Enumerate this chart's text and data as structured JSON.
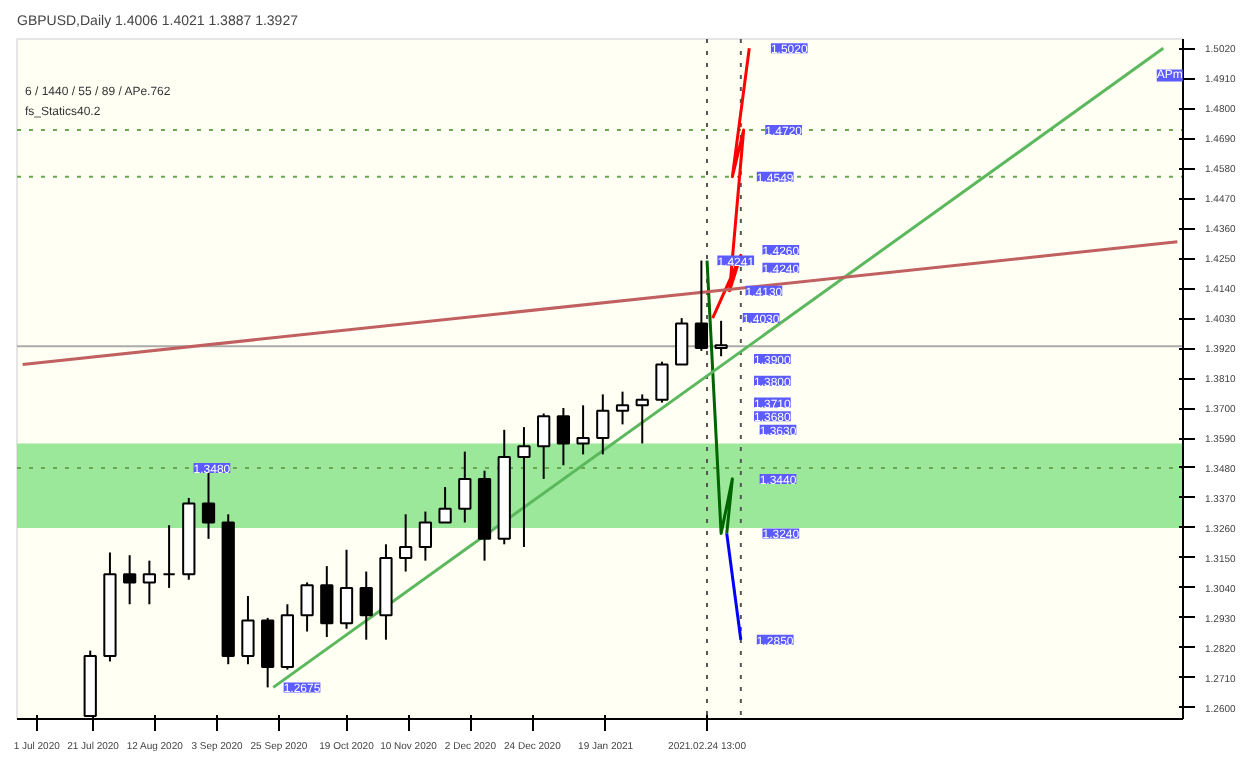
{
  "chart_data": {
    "type": "candlestick",
    "title": "GBPUSD,Daily  1.4006 1.4021 1.3887 1.3927",
    "x": [
      "2020-07-20",
      "2020-07-27",
      "2020-08-03",
      "2020-08-10",
      "2020-08-17",
      "2020-08-24",
      "2020-08-31",
      "2020-09-07",
      "2020-09-14",
      "2020-09-21",
      "2020-09-28",
      "2020-10-05",
      "2020-10-12",
      "2020-10-19",
      "2020-10-26",
      "2020-11-02",
      "2020-11-09",
      "2020-11-16",
      "2020-11-23",
      "2020-11-30",
      "2020-12-07",
      "2020-12-14",
      "2020-12-21",
      "2020-12-28",
      "2021-01-04",
      "2021-01-11",
      "2021-01-18",
      "2021-01-25",
      "2021-02-01",
      "2021-02-08",
      "2021-02-15",
      "2021-02-22",
      "2021-03-01"
    ],
    "ohlc": [
      [
        1.257,
        1.281,
        1.257,
        1.279
      ],
      [
        1.279,
        1.317,
        1.277,
        1.309
      ],
      [
        1.309,
        1.316,
        1.298,
        1.306
      ],
      [
        1.306,
        1.314,
        1.298,
        1.309
      ],
      [
        1.309,
        1.327,
        1.304,
        1.309
      ],
      [
        1.309,
        1.337,
        1.307,
        1.335
      ],
      [
        1.335,
        1.348,
        1.322,
        1.328
      ],
      [
        1.328,
        1.331,
        1.276,
        1.279
      ],
      [
        1.279,
        1.301,
        1.276,
        1.292
      ],
      [
        1.292,
        1.293,
        1.2675,
        1.275
      ],
      [
        1.275,
        1.298,
        1.274,
        1.294
      ],
      [
        1.294,
        1.306,
        1.288,
        1.305
      ],
      [
        1.305,
        1.312,
        1.286,
        1.291
      ],
      [
        1.291,
        1.318,
        1.289,
        1.304
      ],
      [
        1.304,
        1.31,
        1.285,
        1.294
      ],
      [
        1.294,
        1.32,
        1.285,
        1.315
      ],
      [
        1.315,
        1.331,
        1.31,
        1.319
      ],
      [
        1.319,
        1.332,
        1.314,
        1.328
      ],
      [
        1.328,
        1.341,
        1.328,
        1.333
      ],
      [
        1.333,
        1.354,
        1.328,
        1.344
      ],
      [
        1.344,
        1.347,
        1.314,
        1.322
      ],
      [
        1.322,
        1.362,
        1.32,
        1.352
      ],
      [
        1.352,
        1.363,
        1.319,
        1.356
      ],
      [
        1.356,
        1.368,
        1.344,
        1.367
      ],
      [
        1.367,
        1.37,
        1.349,
        1.357
      ],
      [
        1.357,
        1.371,
        1.353,
        1.359
      ],
      [
        1.359,
        1.375,
        1.353,
        1.369
      ],
      [
        1.369,
        1.376,
        1.364,
        1.371
      ],
      [
        1.371,
        1.375,
        1.357,
        1.373
      ],
      [
        1.373,
        1.387,
        1.372,
        1.386
      ],
      [
        1.386,
        1.403,
        1.386,
        1.401
      ],
      [
        1.401,
        1.4241,
        1.391,
        1.392
      ],
      [
        1.392,
        1.402,
        1.389,
        1.393
      ]
    ],
    "series": [
      {
        "type": "line",
        "color": "#ff0000",
        "x": [
          "2021-02-26",
          "2021-03-08",
          "2021-03-04",
          "2021-03-09",
          "2021-03-05",
          "2021-03-11"
        ],
        "values": [
          1.403,
          1.426,
          1.413,
          1.472,
          1.4549,
          1.502
        ]
      },
      {
        "type": "line",
        "color": "#006400",
        "x": [
          "2021-02-24",
          "2021-03-01",
          "2021-03-05",
          "2021-03-03"
        ],
        "values": [
          1.4241,
          1.324,
          1.344,
          1.324
        ]
      },
      {
        "type": "line",
        "color": "#0000ff",
        "x": [
          "2021-03-03",
          "2021-03-08"
        ],
        "values": [
          1.324,
          1.285
        ]
      },
      {
        "type": "line",
        "color": "#5cb85c",
        "x": [
          "2020-09-23",
          "2021-08-05"
        ],
        "values": [
          1.2675,
          1.502
        ]
      },
      {
        "type": "line",
        "color": "#c06060",
        "x": [
          "2020-06-26",
          "2021-08-10"
        ],
        "values": [
          1.386,
          1.431
        ]
      }
    ],
    "bands": [
      {
        "axis": "y",
        "from": 1.326,
        "to": 1.357,
        "color": "#90e690"
      }
    ],
    "ref_lines": [
      {
        "axis": "y",
        "value": 1.3927,
        "color": "#aaaaaa",
        "line_style": "solid"
      },
      {
        "axis": "y",
        "value": 1.472,
        "color": "#6aa84f",
        "line_style": "dotted"
      },
      {
        "axis": "y",
        "value": 1.4549,
        "color": "#6aa84f",
        "line_style": "dotted"
      },
      {
        "axis": "y",
        "value": 1.348,
        "color": "#6aa84f",
        "line_style": "dotted"
      },
      {
        "axis": "x",
        "value": "2021-02-24",
        "color": "#555555",
        "line_style": "dotted"
      },
      {
        "axis": "x",
        "value": "2021-03-08",
        "color": "#555555",
        "line_style": "dotted"
      }
    ],
    "annotations": [
      "6 / 1440 / 55 / 89 / APe.762",
      "fs_Statics40.2",
      {
        "text": "APm",
        "x": "2021-07-28",
        "y": 1.492
      },
      {
        "text": "1.5020",
        "x": "2021-03-13",
        "y": 1.502
      },
      {
        "text": "1.4720",
        "x": "2021-03-11",
        "y": 1.472
      },
      {
        "text": "1.4549",
        "x": "2021-03-08",
        "y": 1.4549
      },
      {
        "text": "1.4260",
        "x": "2021-03-10",
        "y": 1.428
      },
      {
        "text": "1.4240",
        "x": "2021-03-10",
        "y": 1.4215
      },
      {
        "text": "1.4241",
        "x": "2021-02-22",
        "y": 1.4241
      },
      {
        "text": "1.4130",
        "x": "2021-03-04",
        "y": 1.413
      },
      {
        "text": "1.4030",
        "x": "2021-03-03",
        "y": 1.403
      },
      {
        "text": "1.3900",
        "x": "2021-03-07",
        "y": 1.388
      },
      {
        "text": "1.3800",
        "x": "2021-03-07",
        "y": 1.38
      },
      {
        "text": "1.3710",
        "x": "2021-03-07",
        "y": 1.372
      },
      {
        "text": "1.3680",
        "x": "2021-03-07",
        "y": 1.367
      },
      {
        "text": "1.3630",
        "x": "2021-03-09",
        "y": 1.362
      },
      {
        "text": "1.3440",
        "x": "2021-03-09",
        "y": 1.344
      },
      {
        "text": "1.3240",
        "x": "2021-03-10",
        "y": 1.324
      },
      {
        "text": "1.2850",
        "x": "2021-03-08",
        "y": 1.285
      },
      {
        "text": "1.3480",
        "x": "2020-08-20",
        "y": 1.348
      },
      {
        "text": "1.2675",
        "x": "2020-09-21",
        "y": 1.2675
      }
    ],
    "xlim": [
      "2020-06-24",
      "2021-08-12"
    ],
    "xticks": [
      {
        "value": "2020-07-01",
        "label": "1 Jul 2020"
      },
      {
        "value": "2020-07-21",
        "label": "21 Jul 2020"
      },
      {
        "value": "2020-08-12",
        "label": "12 Aug 2020"
      },
      {
        "value": "2020-09-03",
        "label": "3 Sep 2020"
      },
      {
        "value": "2020-09-25",
        "label": "25 Sep 2020"
      },
      {
        "value": "2020-10-19",
        "label": "19 Oct 2020"
      },
      {
        "value": "2020-11-10",
        "label": "10 Nov 2020"
      },
      {
        "value": "2020-12-02",
        "label": "2 Dec 2020"
      },
      {
        "value": "2020-12-24",
        "label": "24 Dec 2020"
      },
      {
        "value": "2021-01-19",
        "label": "19 Jan 2021"
      },
      {
        "value": "2021-02-24",
        "label": "2021.02.24 13:00"
      }
    ],
    "ylim": [
      1.2559,
      1.5054
    ],
    "yticks": [
      {
        "value": 1.502,
        "label": "1.5020"
      },
      {
        "value": 1.491,
        "label": "1.4910"
      },
      {
        "value": 1.48,
        "label": "1.4800"
      },
      {
        "value": 1.469,
        "label": "1.4690"
      },
      {
        "value": 1.458,
        "label": "1.4580"
      },
      {
        "value": 1.447,
        "label": "1.4470"
      },
      {
        "value": 1.436,
        "label": "1.4360"
      },
      {
        "value": 1.425,
        "label": "1.4250"
      },
      {
        "value": 1.414,
        "label": "1.4140"
      },
      {
        "value": 1.403,
        "label": "1.4030"
      },
      {
        "value": 1.392,
        "label": "1.3920"
      },
      {
        "value": 1.381,
        "label": "1.3810"
      },
      {
        "value": 1.37,
        "label": "1.3700"
      },
      {
        "value": 1.359,
        "label": "1.3590"
      },
      {
        "value": 1.348,
        "label": "1.3480"
      },
      {
        "value": 1.337,
        "label": "1.3370"
      },
      {
        "value": 1.326,
        "label": "1.3260"
      },
      {
        "value": 1.315,
        "label": "1.3150"
      },
      {
        "value": 1.304,
        "label": "1.3040"
      },
      {
        "value": 1.293,
        "label": "1.2930"
      },
      {
        "value": 1.282,
        "label": "1.2820"
      },
      {
        "value": 1.271,
        "label": "1.2710"
      },
      {
        "value": 1.26,
        "label": "1.2600"
      }
    ],
    "grid": false
  }
}
